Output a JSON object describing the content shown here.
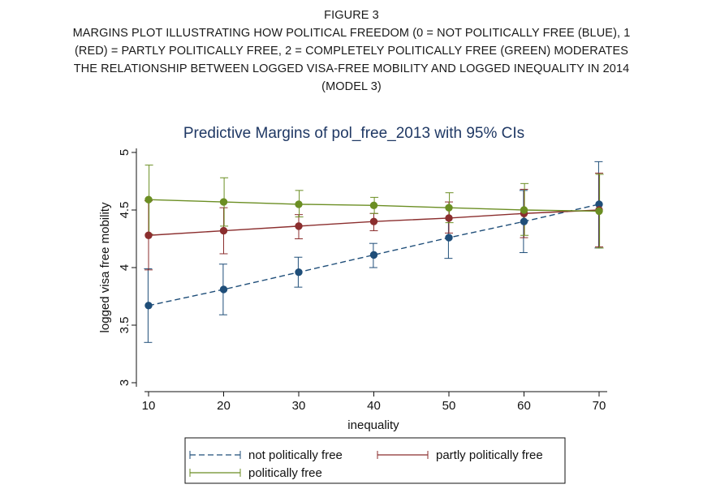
{
  "figure": {
    "label": "FIGURE 3",
    "caption_lines": [
      "MARGINS PLOT ILLUSTRATING HOW POLITICAL FREEDOM (0 = NOT POLITICALLY FREE (BLUE), 1",
      "(RED) = PARTLY POLITICALLY FREE, 2 = COMPLETELY POLITICALLY FREE (GREEN) MODERATES",
      "THE RELATIONSHIP BETWEEN LOGGED VISA-FREE MOBILITY AND LOGGED INEQUALITY IN 2014",
      "(MODEL 3)"
    ]
  },
  "chart_data": {
    "type": "line",
    "title": "Predictive Margins of pol_free_2013 with 95% CIs",
    "xlabel": "inequality",
    "ylabel": "logged visa free mobility",
    "x": [
      10,
      20,
      30,
      40,
      50,
      60,
      70
    ],
    "xticks": [
      "10",
      "20",
      "30",
      "40",
      "50",
      "60",
      "70"
    ],
    "yticks": [
      "3",
      "3.5",
      "4",
      "4.5",
      "5"
    ],
    "xlim": [
      10,
      70
    ],
    "ylim": [
      3,
      5
    ],
    "grid": false,
    "legend_position": "bottom",
    "series": [
      {
        "name": "not politically free",
        "color": "#1f4e79",
        "dashed": true,
        "values": [
          3.67,
          3.81,
          3.96,
          4.11,
          4.26,
          4.4,
          4.55
        ],
        "ci_low": [
          3.35,
          3.59,
          3.83,
          4.0,
          4.08,
          4.13,
          4.17
        ],
        "ci_high": [
          3.99,
          4.03,
          4.09,
          4.21,
          4.43,
          4.67,
          4.92
        ]
      },
      {
        "name": "partly politically free",
        "color": "#8b2e2e",
        "dashed": false,
        "values": [
          4.28,
          4.32,
          4.36,
          4.4,
          4.43,
          4.47,
          4.5
        ],
        "ci_low": [
          3.98,
          4.12,
          4.25,
          4.32,
          4.3,
          4.26,
          4.18
        ],
        "ci_high": [
          4.58,
          4.52,
          4.46,
          4.47,
          4.57,
          4.68,
          4.82
        ]
      },
      {
        "name": "politically free",
        "color": "#6b8e23",
        "dashed": false,
        "values": [
          4.59,
          4.57,
          4.55,
          4.54,
          4.52,
          4.5,
          4.49
        ],
        "ci_low": [
          4.29,
          4.36,
          4.44,
          4.47,
          4.39,
          4.28,
          4.17
        ],
        "ci_high": [
          4.89,
          4.78,
          4.67,
          4.61,
          4.65,
          4.73,
          4.81
        ]
      }
    ]
  }
}
